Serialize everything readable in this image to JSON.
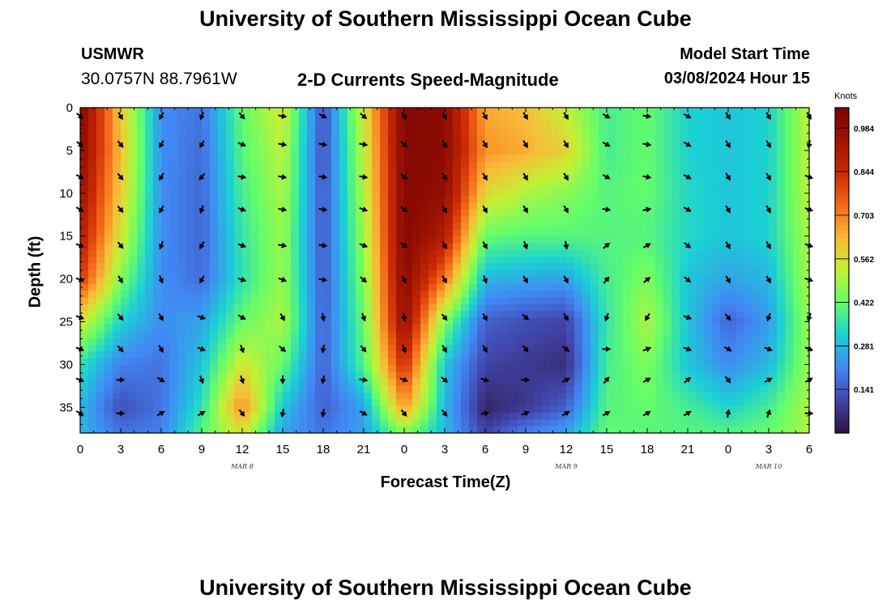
{
  "header": {
    "title": "University of Southern Mississippi Ocean Cube",
    "station_id": "USMWR",
    "coords": "30.0757N  88.7961W",
    "plot_title": "2-D Currents Speed-Magnitude",
    "model_label": "Model Start Time",
    "model_time": "03/08/2024 Hour 15",
    "footer_title": "University of Southern Mississippi Ocean Cube"
  },
  "chart_data": {
    "type": "heatmap",
    "title": "2-D Currents Speed-Magnitude",
    "xlabel": "Forecast Time(Z)",
    "ylabel": "Depth (ft)",
    "x_ticks": [
      "0",
      "3",
      "6",
      "9",
      "12",
      "15",
      "18",
      "21",
      "0",
      "3",
      "6",
      "9",
      "12",
      "15",
      "18",
      "21",
      "0",
      "3",
      "6"
    ],
    "x_hours": [
      0,
      54
    ],
    "y_ticks": [
      0,
      5,
      10,
      15,
      20,
      25,
      30,
      35
    ],
    "ylim": [
      0,
      38
    ],
    "date_labels": [
      {
        "text": "MAR 8",
        "hour": 12
      },
      {
        "text": "MAR 9",
        "hour": 36
      },
      {
        "text": "MAR 10",
        "hour": 51
      }
    ],
    "colorbar": {
      "unit": "Knots",
      "ticks": [
        0.984,
        0.844,
        0.703,
        0.562,
        0.422,
        0.281,
        0.141
      ],
      "range": [
        0,
        1.05
      ]
    },
    "speed_grid": {
      "hours": [
        0,
        3,
        6,
        9,
        12,
        15,
        18,
        21,
        24,
        27,
        30,
        33,
        36,
        39,
        42,
        45,
        48,
        51,
        54
      ],
      "depths": [
        0,
        5,
        10,
        15,
        20,
        25,
        30,
        35,
        38
      ],
      "values": [
        [
          1.02,
          0.6,
          0.22,
          0.18,
          0.42,
          0.55,
          0.12,
          0.55,
          1.02,
          1.0,
          0.65,
          0.62,
          0.52,
          0.38,
          0.42,
          0.32,
          0.3,
          0.32,
          0.52
        ],
        [
          1.0,
          0.62,
          0.22,
          0.17,
          0.4,
          0.52,
          0.12,
          0.52,
          1.02,
          1.0,
          0.68,
          0.65,
          0.58,
          0.38,
          0.42,
          0.32,
          0.3,
          0.32,
          0.52
        ],
        [
          0.95,
          0.6,
          0.22,
          0.16,
          0.38,
          0.5,
          0.13,
          0.5,
          1.02,
          0.98,
          0.58,
          0.5,
          0.46,
          0.4,
          0.42,
          0.33,
          0.3,
          0.32,
          0.52
        ],
        [
          0.9,
          0.55,
          0.22,
          0.16,
          0.36,
          0.48,
          0.13,
          0.48,
          1.02,
          0.9,
          0.42,
          0.4,
          0.4,
          0.4,
          0.4,
          0.33,
          0.3,
          0.32,
          0.5
        ],
        [
          0.82,
          0.45,
          0.22,
          0.17,
          0.35,
          0.48,
          0.14,
          0.45,
          1.0,
          0.72,
          0.28,
          0.26,
          0.25,
          0.38,
          0.45,
          0.3,
          0.25,
          0.28,
          0.5
        ],
        [
          0.55,
          0.32,
          0.22,
          0.25,
          0.42,
          0.5,
          0.15,
          0.42,
          0.98,
          0.45,
          0.15,
          0.12,
          0.1,
          0.36,
          0.5,
          0.3,
          0.16,
          0.24,
          0.48
        ],
        [
          0.35,
          0.2,
          0.18,
          0.3,
          0.55,
          0.42,
          0.15,
          0.4,
          0.85,
          0.3,
          0.1,
          0.08,
          0.06,
          0.38,
          0.45,
          0.3,
          0.22,
          0.28,
          0.48
        ],
        [
          0.28,
          0.12,
          0.18,
          0.35,
          0.7,
          0.3,
          0.15,
          0.25,
          0.68,
          0.28,
          0.04,
          0.08,
          0.15,
          0.4,
          0.42,
          0.38,
          0.32,
          0.38,
          0.5
        ],
        [
          0.28,
          0.18,
          0.2,
          0.4,
          0.55,
          0.25,
          0.18,
          0.25,
          0.45,
          0.28,
          0.1,
          0.2,
          0.25,
          0.42,
          0.4,
          0.4,
          0.4,
          0.42,
          0.5
        ]
      ]
    },
    "vector_depths": [
      1.0,
      4.3,
      8.1,
      11.9,
      16.1,
      20.1,
      24.5,
      28.2,
      31.8,
      35.7
    ],
    "vector_hours": [
      0,
      3,
      6,
      9,
      12,
      15,
      18,
      21,
      24,
      27,
      30,
      33,
      36,
      39,
      42,
      45,
      48,
      51,
      54
    ],
    "vector_directions_deg": [
      [
        130,
        150,
        210,
        200,
        140,
        100,
        120,
        130,
        150,
        150,
        150,
        150,
        150,
        120,
        100,
        120,
        150,
        150,
        150
      ],
      [
        130,
        140,
        210,
        210,
        110,
        100,
        100,
        100,
        130,
        150,
        150,
        150,
        150,
        120,
        100,
        120,
        150,
        150,
        190
      ],
      [
        120,
        140,
        210,
        220,
        100,
        100,
        100,
        100,
        130,
        150,
        150,
        150,
        150,
        120,
        100,
        120,
        150,
        150,
        110
      ],
      [
        120,
        140,
        210,
        200,
        110,
        100,
        100,
        110,
        130,
        150,
        150,
        150,
        150,
        100,
        80,
        120,
        150,
        150,
        110
      ],
      [
        110,
        140,
        200,
        210,
        110,
        100,
        100,
        110,
        130,
        150,
        150,
        160,
        170,
        50,
        60,
        130,
        150,
        150,
        110
      ],
      [
        110,
        150,
        160,
        210,
        110,
        110,
        100,
        130,
        150,
        150,
        160,
        150,
        150,
        40,
        50,
        130,
        150,
        150,
        110
      ],
      [
        110,
        140,
        150,
        110,
        120,
        150,
        170,
        160,
        170,
        140,
        150,
        130,
        150,
        200,
        210,
        110,
        140,
        200,
        200
      ],
      [
        110,
        140,
        150,
        110,
        160,
        130,
        190,
        140,
        160,
        150,
        150,
        140,
        130,
        90,
        70,
        110,
        120,
        110,
        110
      ],
      [
        110,
        90,
        120,
        160,
        160,
        180,
        190,
        100,
        110,
        130,
        110,
        90,
        60,
        40,
        60,
        50,
        140,
        60,
        60
      ],
      [
        120,
        90,
        60,
        60,
        140,
        190,
        190,
        120,
        140,
        140,
        80,
        70,
        60,
        60,
        60,
        60,
        10,
        20,
        90
      ]
    ]
  }
}
